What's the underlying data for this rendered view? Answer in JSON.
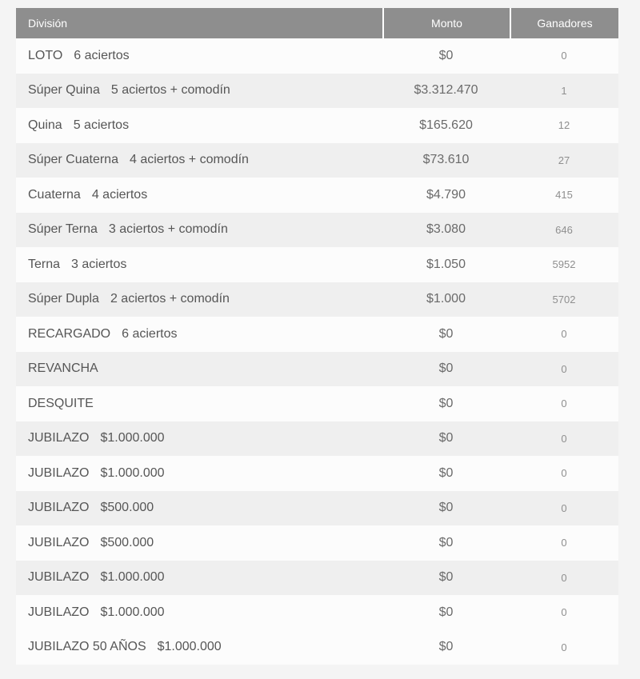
{
  "colors": {
    "page-bg": "#f4f4f4",
    "header-bg": "#8e8e8e",
    "header-text": "#ffffff",
    "separator": "#ffffff",
    "row-white": "#fcfcfc",
    "row-stripe": "#efefef",
    "text-dark": "#565656",
    "text-mid": "#6a6a6a",
    "text-light": "#8f8f8f"
  },
  "table": {
    "columns": [
      {
        "label": "División"
      },
      {
        "label": "Monto"
      },
      {
        "label": "Ganadores"
      }
    ],
    "rows": [
      {
        "name": "LOTO",
        "detail": "6 aciertos",
        "monto": "$0",
        "ganadores": "0",
        "shade": "white"
      },
      {
        "name": "Súper Quina",
        "detail": "5 aciertos + comodín",
        "monto": "$3.312.470",
        "ganadores": "1",
        "shade": "gray"
      },
      {
        "name": "Quina",
        "detail": "5 aciertos",
        "monto": "$165.620",
        "ganadores": "12",
        "shade": "white"
      },
      {
        "name": "Súper Cuaterna",
        "detail": "4 aciertos + comodín",
        "monto": "$73.610",
        "ganadores": "27",
        "shade": "gray"
      },
      {
        "name": "Cuaterna",
        "detail": "4 aciertos",
        "monto": "$4.790",
        "ganadores": "415",
        "shade": "white"
      },
      {
        "name": "Súper Terna",
        "detail": "3 aciertos + comodín",
        "monto": "$3.080",
        "ganadores": "646",
        "shade": "gray"
      },
      {
        "name": "Terna",
        "detail": "3 aciertos",
        "monto": "$1.050",
        "ganadores": "5952",
        "shade": "white"
      },
      {
        "name": "Súper Dupla",
        "detail": "2 aciertos + comodín",
        "monto": "$1.000",
        "ganadores": "5702",
        "shade": "gray"
      },
      {
        "name": "RECARGADO",
        "detail": "6 aciertos",
        "monto": "$0",
        "ganadores": "0",
        "shade": "white"
      },
      {
        "name": "REVANCHA",
        "detail": "",
        "monto": "$0",
        "ganadores": "0",
        "shade": "gray"
      },
      {
        "name": "DESQUITE",
        "detail": "",
        "monto": "$0",
        "ganadores": "0",
        "shade": "white"
      },
      {
        "name": "JUBILAZO",
        "detail": "$1.000.000",
        "monto": "$0",
        "ganadores": "0",
        "shade": "gray"
      },
      {
        "name": "JUBILAZO",
        "detail": "$1.000.000",
        "monto": "$0",
        "ganadores": "0",
        "shade": "white"
      },
      {
        "name": "JUBILAZO",
        "detail": "$500.000",
        "monto": "$0",
        "ganadores": "0",
        "shade": "gray"
      },
      {
        "name": "JUBILAZO",
        "detail": "$500.000",
        "monto": "$0",
        "ganadores": "0",
        "shade": "white"
      },
      {
        "name": "JUBILAZO",
        "detail": "$1.000.000",
        "monto": "$0",
        "ganadores": "0",
        "shade": "gray"
      },
      {
        "name": "JUBILAZO",
        "detail": "$1.000.000",
        "monto": "$0",
        "ganadores": "0",
        "shade": "white"
      },
      {
        "name": "JUBILAZO 50 AÑOS",
        "detail": "$1.000.000",
        "monto": "$0",
        "ganadores": "0",
        "shade": "white"
      }
    ]
  }
}
